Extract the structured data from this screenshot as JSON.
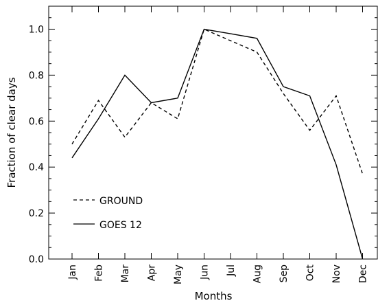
{
  "chart_data": {
    "type": "line",
    "title": "",
    "xlabel": "Months",
    "ylabel": "Fraction of clear days",
    "categories": [
      "Jan",
      "Feb",
      "Mar",
      "Apr",
      "May",
      "Jun",
      "Jul",
      "Aug",
      "Sep",
      "Oct",
      "Nov",
      "Dec"
    ],
    "ylim": [
      0.0,
      1.1
    ],
    "yticks": [
      "0.0",
      "0.2",
      "0.4",
      "0.6",
      "0.8",
      "1.0"
    ],
    "grid": false,
    "legend_position": "lower-left",
    "series": [
      {
        "name": "GROUND",
        "line_style": "dashed",
        "color": "#000000",
        "values": [
          0.5,
          0.69,
          0.53,
          0.68,
          0.61,
          1.0,
          0.95,
          0.9,
          0.72,
          0.56,
          0.71,
          0.37
        ]
      },
      {
        "name": "GOES 12",
        "line_style": "solid",
        "color": "#000000",
        "values": [
          0.44,
          0.61,
          0.8,
          0.68,
          0.7,
          1.0,
          0.98,
          0.96,
          0.75,
          0.71,
          0.41,
          0.0
        ]
      }
    ]
  }
}
